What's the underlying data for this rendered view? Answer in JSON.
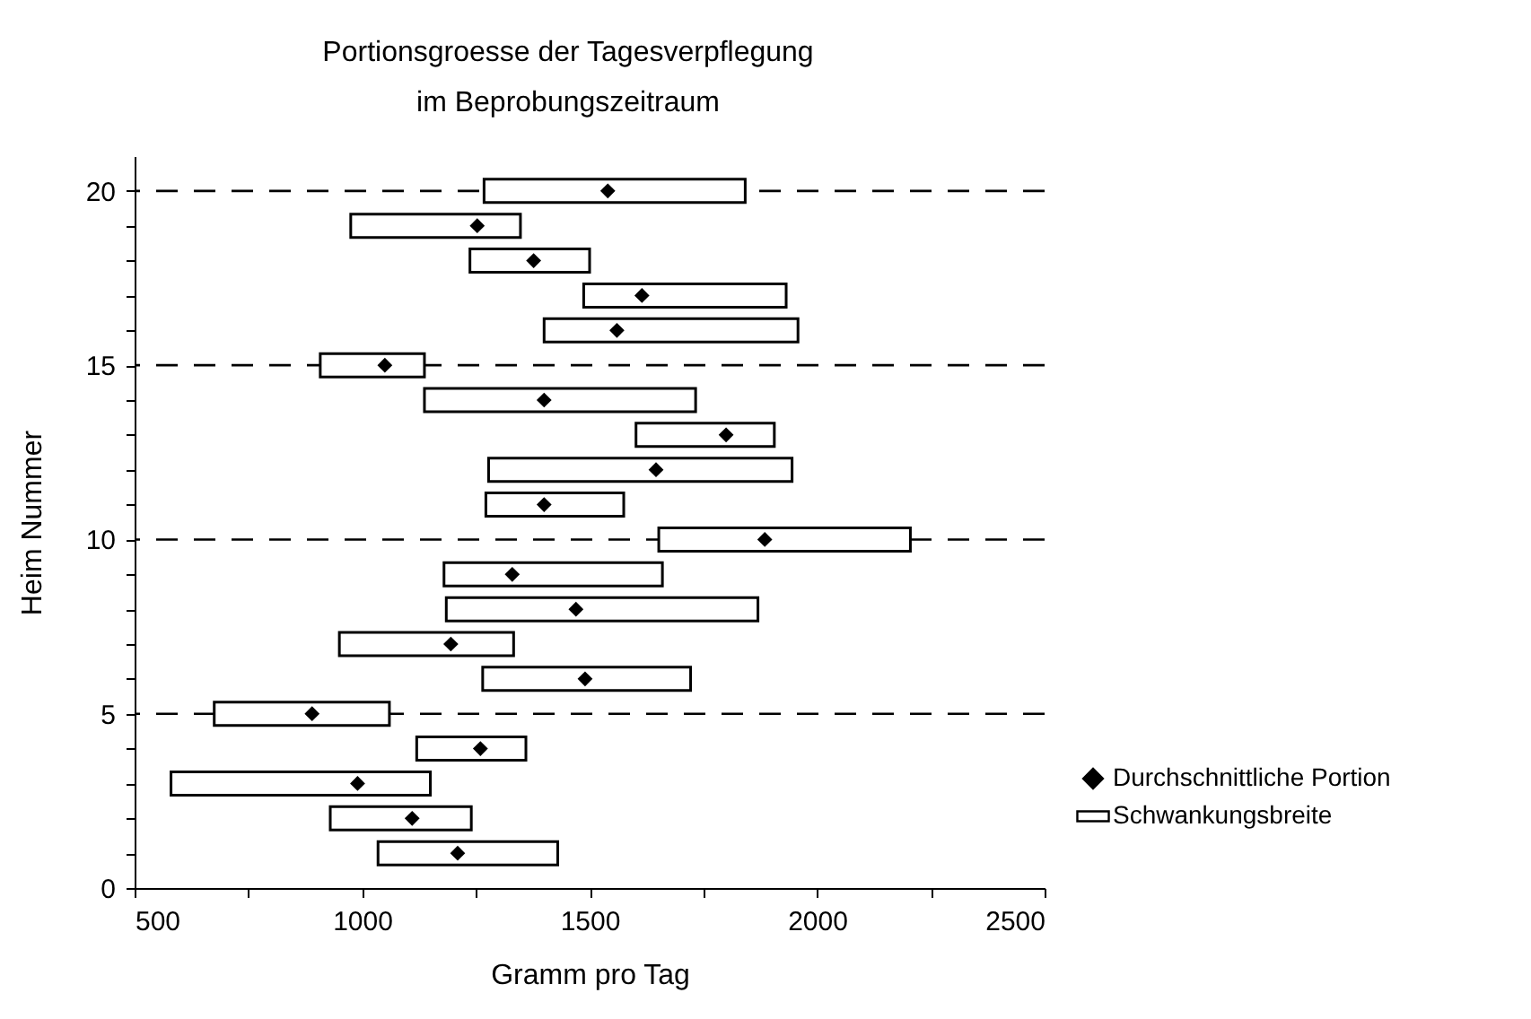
{
  "chart_data": {
    "type": "bar",
    "orientation": "horizontal",
    "title": "Portionsgroesse der Tagesverpflegung\nim Beprobungszeitraum",
    "xlabel": "Gramm pro Tag",
    "ylabel": "Heim Nummer",
    "x": [
      1,
      2,
      3,
      4,
      5,
      6,
      7,
      8,
      9,
      10,
      11,
      12,
      13,
      14,
      15,
      16,
      17,
      18,
      19,
      20
    ],
    "series": [
      {
        "name": "Durchschnittliche Portion",
        "type": "scatter",
        "marker": "diamond",
        "color": "#000000",
        "values": [
          1210,
          1110,
          990,
          1260,
          890,
          1490,
          1195,
          1470,
          1330,
          1885,
          1400,
          1646,
          1800,
          1400,
          1050,
          1560,
          1615,
          1377,
          1253,
          1540
        ]
      },
      {
        "name": "Schwankungsbreite",
        "color": "#ffffff",
        "base": [
          1035,
          930,
          580,
          1120,
          675,
          1265,
          950,
          1185,
          1180,
          1652,
          1272,
          1278,
          1602,
          1137,
          908,
          1400,
          1487,
          1237,
          975,
          1268
        ],
        "values": [
          395,
          310,
          570,
          240,
          385,
          457,
          383,
          685,
          480,
          553,
          303,
          667,
          304,
          596,
          229,
          558,
          445,
          263,
          373,
          574
        ]
      }
    ],
    "xlim": [
      500,
      2500
    ],
    "xticks": [
      500,
      {
        "value": 750,
        "label": null
      },
      1000,
      {
        "value": 1250,
        "label": null
      },
      1500,
      {
        "value": 1750,
        "label": null
      },
      2000,
      {
        "value": 2250,
        "label": null
      },
      2500
    ],
    "ylim": [
      0,
      21
    ],
    "yticks": [
      0,
      {
        "value": 1,
        "label": null
      },
      {
        "value": 2,
        "label": null
      },
      {
        "value": 3,
        "label": null
      },
      {
        "value": 4,
        "label": null
      },
      5,
      {
        "value": 6,
        "label": null
      },
      {
        "value": 7,
        "label": null
      },
      {
        "value": 8,
        "label": null
      },
      {
        "value": 9,
        "label": null
      },
      10,
      {
        "value": 11,
        "label": null
      },
      {
        "value": 12,
        "label": null
      },
      {
        "value": 13,
        "label": null
      },
      {
        "value": 14,
        "label": null
      },
      15,
      {
        "value": 16,
        "label": null
      },
      {
        "value": 17,
        "label": null
      },
      {
        "value": 18,
        "label": null
      },
      {
        "value": 19,
        "label": null
      },
      20
    ],
    "ref_lines": [
      {
        "axis": "y",
        "value": 5,
        "line_style": "dashed",
        "color": "#000000"
      },
      {
        "axis": "y",
        "value": 10,
        "line_style": "dashed",
        "color": "#000000"
      },
      {
        "axis": "y",
        "value": 15,
        "line_style": "dashed",
        "color": "#000000"
      },
      {
        "axis": "y",
        "value": 20,
        "line_style": "dashed",
        "color": "#000000"
      }
    ],
    "legend": "bottom right"
  }
}
